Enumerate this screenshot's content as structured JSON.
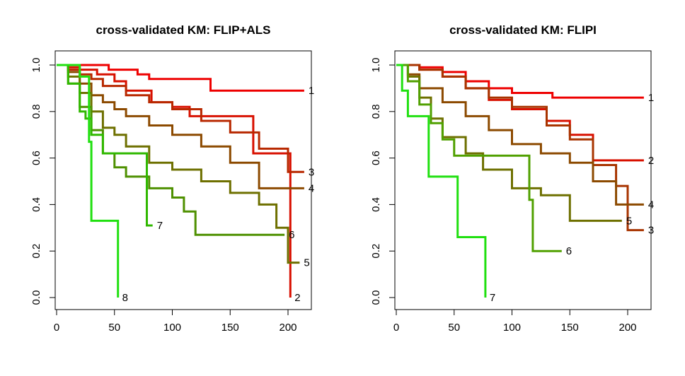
{
  "chart_data": [
    {
      "type": "line",
      "title": "cross-validated KM: FLIP+ALS",
      "xlabel": "",
      "ylabel": "",
      "xlim": [
        0,
        220
      ],
      "ylim": [
        0,
        1
      ],
      "x_ticks": [
        "0",
        "50",
        "100",
        "150",
        "200"
      ],
      "y_ticks": [
        "0.0",
        "0.2",
        "0.4",
        "0.6",
        "0.8",
        "1.0"
      ],
      "grid": false,
      "series": [
        {
          "name": "1",
          "color": "#ee0000",
          "x": [
            0,
            20,
            45,
            50,
            70,
            80,
            100,
            133,
            214
          ],
          "y": [
            1.0,
            1.0,
            0.98,
            0.98,
            0.96,
            0.94,
            0.94,
            0.89,
            0.89
          ]
        },
        {
          "name": "2",
          "color": "#d81000",
          "x": [
            0,
            10,
            20,
            35,
            50,
            60,
            82,
            100,
            115,
            170,
            202,
            202
          ],
          "y": [
            1.0,
            0.99,
            0.98,
            0.96,
            0.93,
            0.89,
            0.84,
            0.82,
            0.78,
            0.62,
            0.62,
            0.0
          ]
        },
        {
          "name": "3",
          "color": "#b82800",
          "x": [
            0,
            10,
            20,
            30,
            40,
            60,
            80,
            100,
            125,
            150,
            175,
            200,
            214
          ],
          "y": [
            1.0,
            0.98,
            0.96,
            0.94,
            0.91,
            0.87,
            0.84,
            0.81,
            0.76,
            0.71,
            0.64,
            0.54,
            0.54
          ]
        },
        {
          "name": "4",
          "color": "#8c4a00",
          "x": [
            0,
            10,
            20,
            30,
            40,
            50,
            60,
            80,
            100,
            125,
            150,
            175,
            214
          ],
          "y": [
            1.0,
            0.97,
            0.92,
            0.87,
            0.84,
            0.81,
            0.78,
            0.74,
            0.7,
            0.65,
            0.58,
            0.47,
            0.47
          ]
        },
        {
          "name": "5",
          "color": "#6e7000",
          "x": [
            0,
            10,
            20,
            30,
            40,
            50,
            60,
            80,
            100,
            125,
            150,
            175,
            190,
            200,
            210
          ],
          "y": [
            1.0,
            0.95,
            0.88,
            0.8,
            0.73,
            0.7,
            0.65,
            0.58,
            0.55,
            0.5,
            0.45,
            0.4,
            0.3,
            0.15,
            0.15
          ]
        },
        {
          "name": "6",
          "color": "#4e9000",
          "x": [
            0,
            10,
            20,
            30,
            40,
            50,
            60,
            80,
            100,
            110,
            120,
            150,
            175,
            195,
            197
          ],
          "y": [
            1.0,
            0.92,
            0.82,
            0.72,
            0.62,
            0.56,
            0.52,
            0.47,
            0.43,
            0.37,
            0.27,
            0.27,
            0.27,
            0.27,
            0.27
          ]
        },
        {
          "name": "7",
          "color": "#30b800",
          "x": [
            0,
            10,
            20,
            25,
            30,
            40,
            60,
            78,
            83
          ],
          "y": [
            1.0,
            0.92,
            0.8,
            0.77,
            0.7,
            0.62,
            0.62,
            0.31,
            0.31
          ]
        },
        {
          "name": "8",
          "color": "#20e010",
          "x": [
            0,
            20,
            28,
            30,
            53,
            53
          ],
          "y": [
            1.0,
            0.95,
            0.67,
            0.33,
            0.33,
            0.0
          ]
        }
      ]
    },
    {
      "type": "line",
      "title": "cross-validated KM: FLIPI",
      "xlabel": "",
      "ylabel": "",
      "xlim": [
        0,
        220
      ],
      "ylim": [
        0,
        1
      ],
      "x_ticks": [
        "0",
        "50",
        "100",
        "150",
        "200"
      ],
      "y_ticks": [
        "0.0",
        "0.2",
        "0.4",
        "0.6",
        "0.8",
        "1.0"
      ],
      "grid": false,
      "series": [
        {
          "name": "1",
          "color": "#ee0000",
          "x": [
            0,
            20,
            40,
            60,
            80,
            100,
            135,
            214
          ],
          "y": [
            1.0,
            0.99,
            0.97,
            0.93,
            0.9,
            0.88,
            0.86,
            0.86
          ]
        },
        {
          "name": "2",
          "color": "#d81000",
          "x": [
            0,
            20,
            40,
            60,
            80,
            100,
            130,
            150,
            170,
            214
          ],
          "y": [
            1.0,
            0.98,
            0.95,
            0.9,
            0.85,
            0.81,
            0.76,
            0.7,
            0.59,
            0.59
          ]
        },
        {
          "name": "3",
          "color": "#a83400",
          "x": [
            0,
            20,
            40,
            60,
            80,
            100,
            130,
            150,
            170,
            190,
            200,
            214
          ],
          "y": [
            1.0,
            0.98,
            0.95,
            0.9,
            0.86,
            0.82,
            0.74,
            0.68,
            0.57,
            0.48,
            0.29,
            0.29
          ]
        },
        {
          "name": "4",
          "color": "#8c4a00",
          "x": [
            0,
            10,
            20,
            40,
            60,
            80,
            100,
            125,
            150,
            170,
            190,
            214
          ],
          "y": [
            1.0,
            0.96,
            0.9,
            0.84,
            0.78,
            0.72,
            0.66,
            0.62,
            0.58,
            0.5,
            0.4,
            0.4
          ]
        },
        {
          "name": "5",
          "color": "#6e7000",
          "x": [
            0,
            10,
            20,
            30,
            40,
            60,
            75,
            100,
            125,
            150,
            195
          ],
          "y": [
            1.0,
            0.95,
            0.86,
            0.77,
            0.69,
            0.62,
            0.55,
            0.47,
            0.44,
            0.33,
            0.33
          ]
        },
        {
          "name": "6",
          "color": "#50a000",
          "x": [
            0,
            10,
            20,
            30,
            40,
            50,
            100,
            115,
            118,
            143
          ],
          "y": [
            1.0,
            0.93,
            0.83,
            0.75,
            0.68,
            0.61,
            0.61,
            0.42,
            0.2,
            0.2
          ]
        },
        {
          "name": "7",
          "color": "#20e010",
          "x": [
            0,
            5,
            10,
            28,
            53,
            77,
            77
          ],
          "y": [
            1.0,
            0.89,
            0.78,
            0.52,
            0.26,
            0.26,
            0.0
          ]
        }
      ]
    }
  ]
}
